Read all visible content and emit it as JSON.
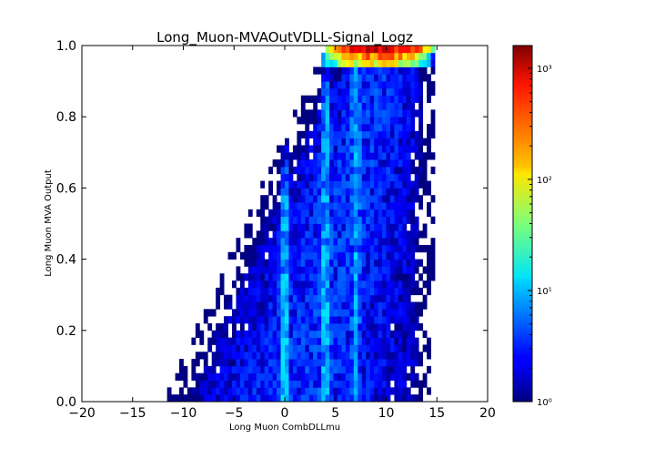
{
  "chart_data": {
    "type": "heatmap",
    "title": "Long_Muon-MVAOutVDLL-Signal_Logz",
    "xlabel": "Long Muon CombDLLmu",
    "ylabel": "Long Muon MVA Output",
    "xlim": [
      -20,
      20
    ],
    "ylim": [
      0.0,
      1.0
    ],
    "x_ticks": [
      "−20",
      "−15",
      "−10",
      "−5",
      "0",
      "5",
      "10",
      "15",
      "20"
    ],
    "y_ticks": [
      "0.0",
      "0.2",
      "0.4",
      "0.6",
      "0.8",
      "1.0"
    ],
    "colorbar": {
      "scale": "log",
      "colormap": "jet",
      "range": [
        1,
        1600
      ],
      "tick_labels": [
        "10⁰",
        "10¹",
        "10²",
        "10³"
      ]
    },
    "bins": {
      "x_count": 100,
      "y_count": 50
    },
    "features": {
      "max_region": "x 4 to 14, y near 1.0 (counts above 10^3)",
      "ridges_x": [
        0,
        4,
        7
      ],
      "occupied_x_range": [
        -11,
        14.5
      ]
    }
  }
}
